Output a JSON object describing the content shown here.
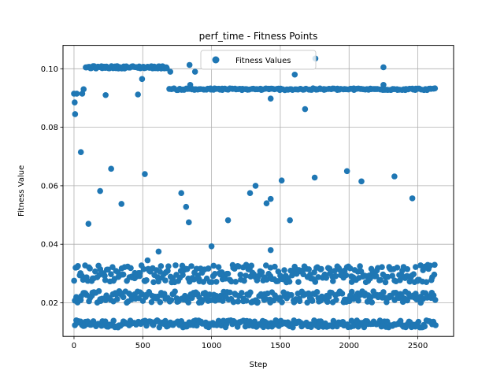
{
  "chart_data": {
    "type": "scatter",
    "title": "perf_time - Fitness Points",
    "xlabel": "Step",
    "ylabel": "Fitness Value",
    "xlim": [
      -80,
      2760
    ],
    "ylim": [
      0.0085,
      0.108
    ],
    "xticks": [
      0,
      500,
      1000,
      1500,
      2000,
      2500
    ],
    "yticks": [
      0.02,
      0.04,
      0.06,
      0.08,
      0.1
    ],
    "ytick_labels": [
      "0.02",
      "0.04",
      "0.06",
      "0.08",
      "0.10"
    ],
    "grid": true,
    "legend": {
      "position": "top-center",
      "entries": [
        "Fitness Values"
      ]
    },
    "series": [
      {
        "name": "Fitness Values",
        "color": "#1f77b4",
        "bands": [
          {
            "x_from": 0,
            "x_to": 2630,
            "y_center": 0.0128,
            "y_spread": 0.0012,
            "count": 260
          },
          {
            "x_from": 0,
            "x_to": 2630,
            "y_center": 0.022,
            "y_spread": 0.002,
            "count": 260
          },
          {
            "x_from": 0,
            "x_to": 2630,
            "y_center": 0.03,
            "y_spread": 0.003,
            "count": 280
          },
          {
            "x_from": 80,
            "x_to": 680,
            "y_center": 0.1005,
            "y_spread": 0.0004,
            "count": 70
          },
          {
            "x_from": 690,
            "x_to": 2630,
            "y_center": 0.093,
            "y_spread": 0.0003,
            "count": 160
          }
        ],
        "points": [
          [
            0,
            0.0915
          ],
          [
            5,
            0.0885
          ],
          [
            8,
            0.0845
          ],
          [
            20,
            0.0915
          ],
          [
            50,
            0.0715
          ],
          [
            60,
            0.0915
          ],
          [
            70,
            0.093
          ],
          [
            105,
            0.047
          ],
          [
            190,
            0.0582
          ],
          [
            230,
            0.091
          ],
          [
            270,
            0.0658
          ],
          [
            345,
            0.0538
          ],
          [
            465,
            0.0912
          ],
          [
            495,
            0.0965
          ],
          [
            515,
            0.064
          ],
          [
            535,
            0.0345
          ],
          [
            615,
            0.0375
          ],
          [
            700,
            0.099
          ],
          [
            780,
            0.0575
          ],
          [
            815,
            0.0528
          ],
          [
            835,
            0.0475
          ],
          [
            840,
            0.1013
          ],
          [
            845,
            0.0945
          ],
          [
            880,
            0.099
          ],
          [
            1000,
            0.0393
          ],
          [
            1120,
            0.0482
          ],
          [
            1280,
            0.0575
          ],
          [
            1320,
            0.06
          ],
          [
            1400,
            0.054
          ],
          [
            1430,
            0.0555
          ],
          [
            1430,
            0.038
          ],
          [
            1430,
            0.0898
          ],
          [
            1510,
            0.0618
          ],
          [
            1570,
            0.0482
          ],
          [
            1605,
            0.098
          ],
          [
            1680,
            0.0862
          ],
          [
            1750,
            0.0628
          ],
          [
            1755,
            0.1035
          ],
          [
            1985,
            0.065
          ],
          [
            2090,
            0.0615
          ],
          [
            2250,
            0.1005
          ],
          [
            2250,
            0.0945
          ],
          [
            2330,
            0.0632
          ],
          [
            2460,
            0.0557
          ]
        ]
      }
    ]
  }
}
